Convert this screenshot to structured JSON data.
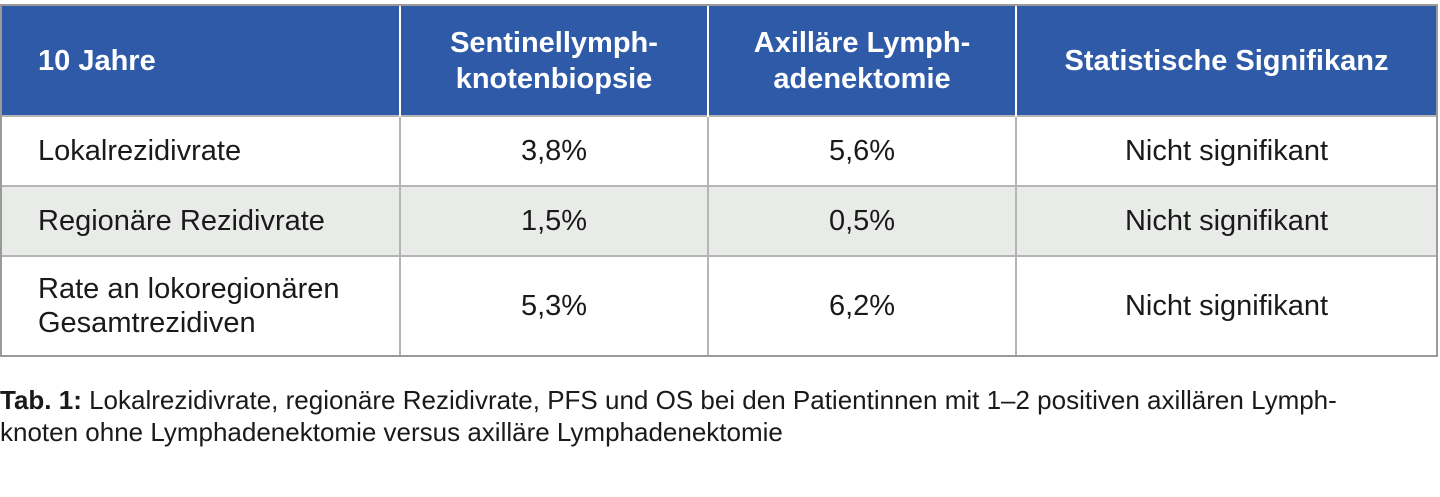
{
  "table": {
    "headers": [
      "10 Jahre",
      "Sentinellymph-\nknotenbiopsie",
      "Axilläre Lymph-\nadenektomie",
      "Statistische Signifikanz"
    ],
    "rows": [
      [
        "Lokalrezidivrate",
        "3,8%",
        "5,6%",
        "Nicht signifikant"
      ],
      [
        "Regionäre Rezidivrate",
        "1,5%",
        "0,5%",
        "Nicht signifikant"
      ],
      [
        "Rate an lokoregionären\nGesamtrezidiven",
        "5,3%",
        "6,2%",
        "Nicht signifikant"
      ]
    ]
  },
  "caption": {
    "label": "Tab. 1:",
    "text": "Lokalrezidivrate, regionäre Rezidivrate, PFS und OS bei den Patientinnen mit 1–2 positiven axillären Lymph-\nknoten ohne Lymphadenektomie versus axilläre Lymphadenektomie"
  },
  "colors": {
    "header_bg": "#2f5aa8",
    "header_text": "#ffffff",
    "stripe_bg": "#e9ebe9",
    "border": "#b5b5b5"
  }
}
